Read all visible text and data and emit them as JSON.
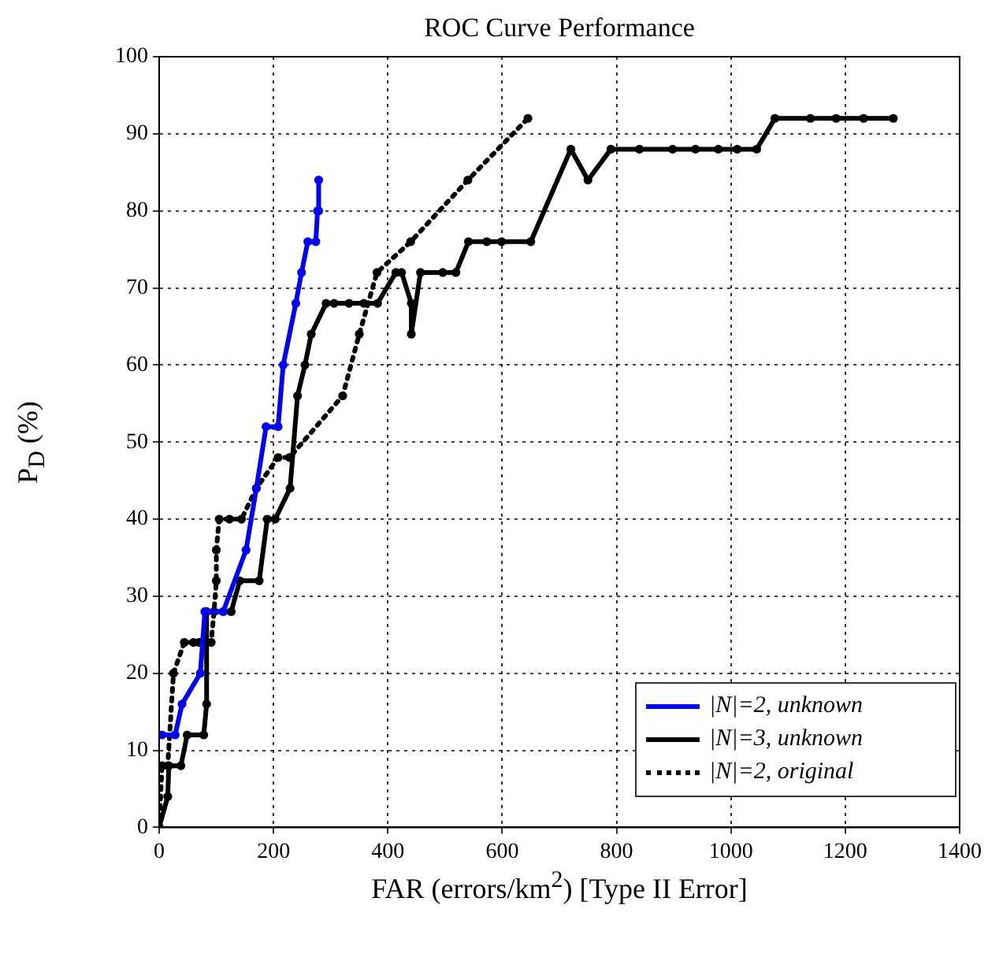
{
  "chart_data": {
    "type": "line",
    "title": "ROC Curve Performance",
    "xlabel": "FAR (errors/km$^{2}$) [Type II Error]",
    "ylabel": "P$_{D}$ (%)",
    "xlim": [
      0,
      1400
    ],
    "xticks": [
      0,
      200,
      400,
      600,
      800,
      1000,
      1200,
      1400
    ],
    "ylim": [
      0,
      100
    ],
    "yticks": [
      0,
      10,
      20,
      30,
      40,
      50,
      60,
      70,
      80,
      90,
      100
    ],
    "grid": true,
    "legend": "bottom right",
    "marker": "circle",
    "series": [
      {
        "name": "|N|=2, unknown",
        "color": "#0000ff",
        "line_style": "solid",
        "x": [
          5,
          28,
          40,
          72,
          80,
          112,
          152,
          170,
          187,
          208,
          217,
          239,
          249,
          260,
          274,
          277,
          279,
          279
        ],
        "values": [
          12,
          12,
          16,
          20,
          28,
          28,
          36,
          44,
          52,
          52,
          60,
          68,
          72,
          76,
          76,
          80,
          80,
          84
        ]
      },
      {
        "name": "|N|=3, unknown",
        "color": "#000000",
        "line_style": "solid",
        "x": [
          0,
          15,
          17,
          38,
          49,
          78,
          83,
          83,
          126,
          141,
          175,
          189,
          203,
          229,
          242,
          255,
          266,
          292,
          306,
          332,
          358,
          382,
          414,
          424,
          441,
          441,
          457,
          496,
          519,
          541,
          573,
          599,
          650,
          720,
          750,
          790,
          840,
          898,
          938,
          978,
          1011,
          1045,
          1077,
          1139,
          1184,
          1232,
          1284
        ],
        "values": [
          0,
          4,
          8,
          8,
          12,
          12,
          16,
          28,
          28,
          32,
          32,
          40,
          40,
          44,
          56,
          60,
          64,
          68,
          68,
          68,
          68,
          68,
          72,
          72,
          68,
          64,
          72,
          72,
          72,
          76,
          76,
          76,
          76,
          88,
          84,
          88,
          88,
          88,
          88,
          88,
          88,
          88,
          92,
          92,
          92,
          92,
          92
        ]
      },
      {
        "name": "|N|=2, original",
        "color": "#000000",
        "line_style": "dotted",
        "x": [
          0,
          5,
          15,
          25,
          44,
          60,
          70,
          91,
          96,
          100,
          100,
          105,
          123,
          144,
          170,
          208,
          228,
          321,
          350,
          381,
          440,
          540,
          645
        ],
        "values": [
          0,
          8,
          8,
          20,
          24,
          24,
          24,
          24,
          28,
          32,
          36,
          40,
          40,
          40,
          44,
          48,
          48,
          56,
          64,
          72,
          76,
          84,
          92
        ]
      }
    ]
  }
}
